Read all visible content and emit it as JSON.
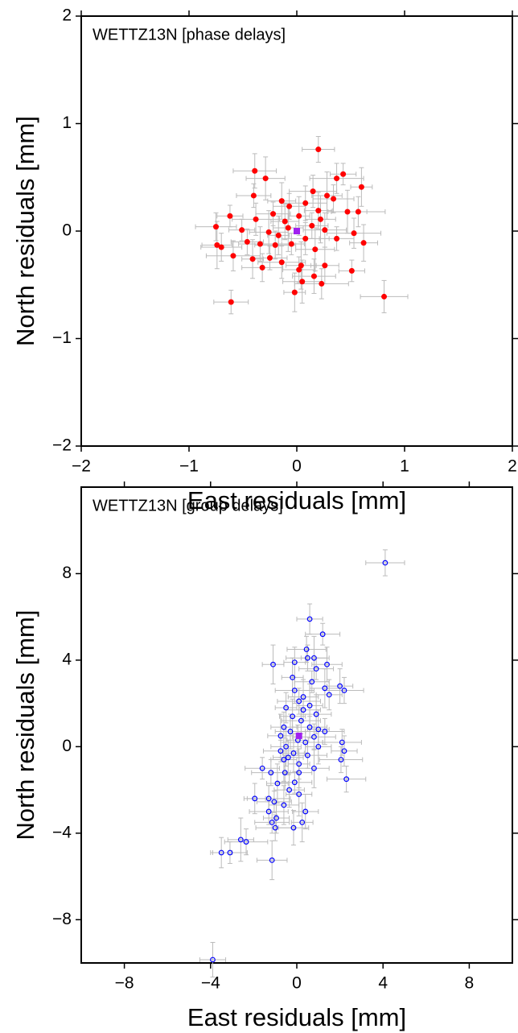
{
  "chart_data": [
    {
      "type": "scatter",
      "annotation": "WETTZ13N [phase delays]",
      "xlabel": "East residuals [mm]",
      "ylabel": "North residuals [mm]",
      "xlim": [
        -2,
        2
      ],
      "ylim": [
        -2,
        2
      ],
      "xticks": [
        {
          "value": -2,
          "label": "−2"
        },
        {
          "value": -1,
          "label": "−1"
        },
        0,
        1,
        2
      ],
      "yticks": [
        {
          "value": -2,
          "label": "−2"
        },
        {
          "value": -1,
          "label": "−1"
        },
        0,
        1,
        2
      ],
      "series": [
        {
          "color": "#ff0000",
          "marker": "filled",
          "error_color": "#bbbbbb",
          "x": [
            0.2,
            -0.39,
            0.43,
            -0.29,
            0.37,
            0.6,
            -0.4,
            0.15,
            0.28,
            0.34,
            -0.14,
            -0.07,
            0.08,
            -0.62,
            0.47,
            0.57,
            0.02,
            -0.22,
            -0.38,
            0.22,
            -0.75,
            -0.11,
            0.14,
            0.26,
            -0.51,
            -0.26,
            0.53,
            -0.17,
            0.37,
            0.08,
            -0.74,
            -0.7,
            0.62,
            -0.46,
            -0.34,
            -0.05,
            0.17,
            -0.59,
            -0.41,
            -0.25,
            -0.14,
            0.04,
            -0.32,
            0.26,
            0.02,
            0.16,
            0.51,
            0.05,
            0.23,
            -0.02,
            -0.61,
            0.81,
            -0.08,
            -0.2,
            0.2
          ],
          "y": [
            0.76,
            0.56,
            0.53,
            0.49,
            0.49,
            0.41,
            0.33,
            0.37,
            0.33,
            0.3,
            0.28,
            0.23,
            0.26,
            0.14,
            0.18,
            0.18,
            0.14,
            0.16,
            0.11,
            0.11,
            0.04,
            0.09,
            0.05,
            0.01,
            0.01,
            -0.01,
            -0.02,
            -0.04,
            -0.07,
            -0.07,
            -0.13,
            -0.15,
            -0.11,
            -0.1,
            -0.12,
            -0.12,
            -0.17,
            -0.23,
            -0.26,
            -0.25,
            -0.29,
            -0.32,
            -0.34,
            -0.32,
            -0.36,
            -0.42,
            -0.37,
            -0.47,
            -0.49,
            -0.57,
            -0.66,
            -0.61,
            0.03,
            -0.13,
            0.19
          ],
          "xerr": [
            0.15,
            0.2,
            0.12,
            0.18,
            0.25,
            0.1,
            0.16,
            0.22,
            0.14,
            0.19,
            0.13,
            0.15,
            0.2,
            0.12,
            0.18,
            0.25,
            0.1,
            0.16,
            0.22,
            0.14,
            0.19,
            0.13,
            0.15,
            0.2,
            0.12,
            0.18,
            0.25,
            0.1,
            0.16,
            0.22,
            0.14,
            0.19,
            0.13,
            0.15,
            0.2,
            0.12,
            0.18,
            0.25,
            0.1,
            0.16,
            0.22,
            0.14,
            0.19,
            0.13,
            0.15,
            0.2,
            0.12,
            0.18,
            0.25,
            0.1,
            0.16,
            0.22,
            0.14,
            0.19,
            0.13
          ],
          "yerr": [
            0.12,
            0.16,
            0.1,
            0.2,
            0.14,
            0.18,
            0.11,
            0.15,
            0.22,
            0.13,
            0.17,
            0.12,
            0.16,
            0.1,
            0.2,
            0.14,
            0.18,
            0.11,
            0.15,
            0.22,
            0.13,
            0.17,
            0.12,
            0.16,
            0.1,
            0.2,
            0.14,
            0.18,
            0.11,
            0.15,
            0.22,
            0.13,
            0.17,
            0.12,
            0.16,
            0.1,
            0.2,
            0.14,
            0.18,
            0.11,
            0.15,
            0.22,
            0.13,
            0.17,
            0.12,
            0.16,
            0.1,
            0.2,
            0.14,
            0.18,
            0.11,
            0.15,
            0.22,
            0.13,
            0.17
          ]
        },
        {
          "color": "#a020f0",
          "marker": "square",
          "x": [
            0
          ],
          "y": [
            0
          ]
        }
      ]
    },
    {
      "type": "scatter",
      "annotation": "WETTZ13N [group delays]",
      "xlabel": "East residuals [mm]",
      "ylabel": "North residuals [mm]",
      "xlim": [
        -10,
        10
      ],
      "ylim": [
        -10,
        12
      ],
      "xticks": [
        {
          "value": -8,
          "label": "−8"
        },
        {
          "value": -4,
          "label": "−4"
        },
        0,
        4,
        8
      ],
      "yticks": [
        {
          "value": -8,
          "label": "−8"
        },
        {
          "value": -4,
          "label": "−4"
        },
        0,
        4,
        8
      ],
      "series": [
        {
          "color": "#0000ff",
          "marker": "open",
          "error_color": "#bbbbbb",
          "x": [
            0.6,
            1.2,
            -1.1,
            0.45,
            1.4,
            0.8,
            0.5,
            -0.1,
            0.9,
            1.3,
            2.0,
            2.2,
            1.5,
            0.7,
            -0.2,
            -0.1,
            0.3,
            0.6,
            0.1,
            -0.5,
            0.3,
            0.9,
            -0.2,
            0.2,
            -0.6,
            0.6,
            1.0,
            1.3,
            -0.3,
            -0.75,
            0.8,
            0.05,
            0.4,
            -0.5,
            1.0,
            2.1,
            2.2,
            -0.75,
            -0.15,
            0.5,
            -0.4,
            -0.6,
            2.05,
            0.1,
            -1.6,
            0.8,
            -0.55,
            -1.2,
            0.1,
            -0.1,
            -0.9,
            2.3,
            -0.35,
            0.1,
            -1.3,
            -1.95,
            -1.05,
            -0.6,
            0.4,
            -1.3,
            -0.95,
            -1.15,
            0.25,
            -1.0,
            -0.15,
            -2.6,
            -2.35,
            -3.5,
            -3.1,
            -1.15,
            -3.9,
            4.1
          ],
          "y": [
            5.9,
            5.2,
            3.8,
            4.5,
            3.8,
            4.1,
            4.1,
            3.9,
            3.6,
            2.7,
            2.8,
            2.6,
            2.4,
            3.0,
            3.2,
            2.6,
            2.3,
            1.9,
            2.1,
            1.8,
            1.7,
            1.5,
            1.4,
            1.2,
            0.9,
            0.9,
            0.8,
            0.7,
            0.7,
            0.5,
            0.45,
            0.3,
            0.2,
            0.0,
            0.0,
            0.2,
            -0.2,
            -0.2,
            -0.3,
            -0.4,
            -0.5,
            -0.6,
            -0.6,
            -0.8,
            -1.0,
            -1.0,
            -1.2,
            -1.2,
            -1.2,
            -1.65,
            -1.7,
            -1.5,
            -2.0,
            -2.2,
            -2.4,
            -2.4,
            -2.55,
            -2.7,
            -3.0,
            -3.0,
            -3.3,
            -3.5,
            -3.5,
            -3.75,
            -3.75,
            -4.3,
            -4.4,
            -4.9,
            -4.9,
            -5.25,
            -9.85,
            8.5
          ],
          "xerr": [
            0.6,
            0.8,
            0.5,
            0.9,
            0.7,
            0.6,
            1.0,
            0.5,
            0.8,
            0.7,
            0.6,
            0.9,
            0.6,
            0.8,
            0.5,
            0.9,
            0.7,
            0.6,
            1.0,
            0.5,
            0.8,
            0.7,
            0.6,
            0.9,
            0.6,
            0.8,
            0.5,
            0.9,
            0.7,
            0.6,
            1.0,
            0.5,
            0.8,
            0.7,
            0.6,
            0.9,
            0.6,
            0.8,
            0.5,
            0.9,
            0.7,
            0.6,
            1.0,
            0.5,
            0.8,
            0.7,
            0.6,
            0.9,
            0.6,
            0.8,
            0.5,
            0.9,
            0.7,
            0.6,
            1.0,
            0.5,
            0.8,
            0.7,
            0.6,
            0.9,
            0.6,
            0.8,
            0.5,
            0.9,
            0.7,
            0.6,
            1.0,
            0.5,
            0.8,
            0.7,
            0.6,
            0.9
          ],
          "yerr": [
            0.7,
            0.5,
            0.9,
            0.6,
            0.8,
            1.0,
            0.6,
            0.7,
            0.5,
            0.9,
            0.8,
            0.6,
            0.7,
            0.5,
            0.9,
            0.6,
            0.8,
            1.0,
            0.6,
            0.7,
            0.5,
            0.9,
            0.8,
            0.6,
            0.7,
            0.5,
            0.9,
            0.6,
            0.8,
            1.0,
            0.6,
            0.7,
            0.5,
            0.9,
            0.8,
            0.6,
            0.7,
            0.5,
            0.9,
            0.6,
            0.8,
            1.0,
            0.6,
            0.7,
            0.5,
            0.9,
            0.8,
            0.6,
            0.7,
            0.5,
            0.9,
            0.6,
            0.8,
            1.0,
            0.6,
            0.7,
            0.5,
            0.9,
            0.8,
            0.6,
            0.7,
            0.5,
            0.9,
            0.6,
            0.8,
            1.0,
            0.6,
            0.7,
            0.5,
            0.9,
            0.8,
            0.6
          ]
        },
        {
          "color": "#a020f0",
          "marker": "square",
          "x": [
            0.1
          ],
          "y": [
            0.5
          ]
        }
      ]
    }
  ]
}
